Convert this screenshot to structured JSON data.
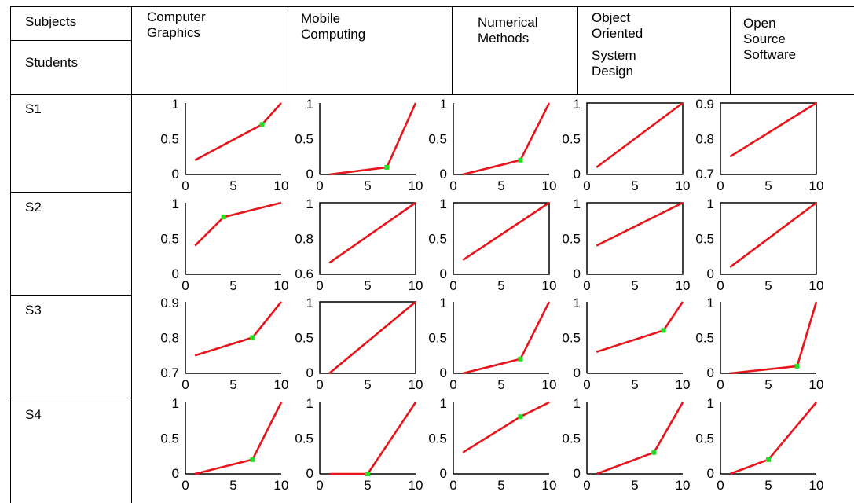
{
  "header": {
    "corner_top": "Subjects",
    "corner_bottom": "Students",
    "subjects": [
      {
        "lines": [
          "Computer",
          "Graphics"
        ]
      },
      {
        "lines": [
          "Mobile",
          "Computing"
        ]
      },
      {
        "lines": [
          "Numerical",
          "Methods"
        ]
      },
      {
        "lines": [
          "Object",
          "Oriented",
          "System",
          "Design"
        ]
      },
      {
        "lines": [
          "Open",
          "Source",
          "Software"
        ]
      }
    ]
  },
  "students": [
    "S1",
    "S2",
    "S3",
    "S4"
  ],
  "colors": {
    "line": "#e8141a",
    "point": "#22dd22",
    "axis": "#000000"
  },
  "chart_data": [
    {
      "type": "line",
      "student": "S1",
      "subject": "Computer Graphics",
      "x": [
        1,
        8,
        10
      ],
      "y": [
        0.2,
        0.7,
        1.0
      ],
      "marker_x": 8,
      "marker_y": 0.7,
      "ylim": [
        0,
        1
      ],
      "yticks": [
        "1",
        "0.5",
        "0"
      ],
      "xlim": [
        0,
        10
      ],
      "xticks": [
        "0",
        "5",
        "10"
      ],
      "box": false
    },
    {
      "type": "line",
      "student": "S1",
      "subject": "Mobile Computing",
      "x": [
        1,
        7,
        10
      ],
      "y": [
        0.0,
        0.1,
        1.0
      ],
      "marker_x": 7,
      "marker_y": 0.1,
      "ylim": [
        0,
        1
      ],
      "yticks": [
        "1",
        "0.5",
        "0"
      ],
      "xlim": [
        0,
        10
      ],
      "xticks": [
        "0",
        "5",
        "10"
      ],
      "box": false
    },
    {
      "type": "line",
      "student": "S1",
      "subject": "Numerical Methods",
      "x": [
        1,
        7,
        10
      ],
      "y": [
        0.0,
        0.2,
        1.0
      ],
      "marker_x": 7,
      "marker_y": 0.2,
      "ylim": [
        0,
        1
      ],
      "yticks": [
        "1",
        "0.5",
        "0"
      ],
      "xlim": [
        0,
        10
      ],
      "xticks": [
        "0",
        "5",
        "10"
      ],
      "box": false
    },
    {
      "type": "line",
      "student": "S1",
      "subject": "Object Oriented System Design",
      "x": [
        1,
        10
      ],
      "y": [
        0.1,
        1.0
      ],
      "ylim": [
        0,
        1
      ],
      "yticks": [
        "1",
        "0.5",
        "0"
      ],
      "xlim": [
        0,
        10
      ],
      "xticks": [
        "0",
        "5",
        "10"
      ],
      "box": true
    },
    {
      "type": "line",
      "student": "S1",
      "subject": "Open Source Software",
      "x": [
        1,
        10
      ],
      "y": [
        0.7,
        1.0
      ],
      "ylim": [
        0.6,
        1.0
      ],
      "yticks": [
        "0.9",
        "0.8",
        "0.7"
      ],
      "xlim": [
        0,
        10
      ],
      "xticks": [
        "0",
        "5",
        "10"
      ],
      "box": true
    },
    {
      "type": "line",
      "student": "S2",
      "subject": "Computer Graphics",
      "x": [
        1,
        4,
        10
      ],
      "y": [
        0.4,
        0.8,
        1.0
      ],
      "marker_x": 4,
      "marker_y": 0.8,
      "ylim": [
        0,
        1
      ],
      "yticks": [
        "1",
        "0.5",
        "0"
      ],
      "xlim": [
        0,
        10
      ],
      "xticks": [
        "0",
        "5",
        "10"
      ],
      "box": false
    },
    {
      "type": "line",
      "student": "S2",
      "subject": "Mobile Computing",
      "x": [
        1,
        10
      ],
      "y": [
        0.58,
        1.0
      ],
      "ylim": [
        0.5,
        1.0
      ],
      "yticks": [
        "1",
        "0.8",
        "0.6"
      ],
      "xlim": [
        0,
        10
      ],
      "xticks": [
        "0",
        "5",
        "10"
      ],
      "box": true
    },
    {
      "type": "line",
      "student": "S2",
      "subject": "Numerical Methods",
      "x": [
        1,
        10
      ],
      "y": [
        0.2,
        1.0
      ],
      "ylim": [
        0,
        1
      ],
      "yticks": [
        "1",
        "0.5",
        "0"
      ],
      "xlim": [
        0,
        10
      ],
      "xticks": [
        "0",
        "5",
        "10"
      ],
      "box": true
    },
    {
      "type": "line",
      "student": "S2",
      "subject": "Object Oriented System Design",
      "x": [
        1,
        10
      ],
      "y": [
        0.4,
        1.0
      ],
      "ylim": [
        0,
        1
      ],
      "yticks": [
        "1",
        "0.5",
        "0"
      ],
      "xlim": [
        0,
        10
      ],
      "xticks": [
        "0",
        "5",
        "10"
      ],
      "box": true
    },
    {
      "type": "line",
      "student": "S2",
      "subject": "Open Source Software",
      "x": [
        1,
        10
      ],
      "y": [
        0.1,
        1.0
      ],
      "ylim": [
        0,
        1
      ],
      "yticks": [
        "1",
        "0.5",
        "0"
      ],
      "xlim": [
        0,
        10
      ],
      "xticks": [
        "0",
        "5",
        "10"
      ],
      "box": true
    },
    {
      "type": "line",
      "student": "S3",
      "subject": "Computer Graphics",
      "x": [
        1,
        7,
        10
      ],
      "y": [
        0.7,
        0.8,
        1.0
      ],
      "marker_x": 7,
      "marker_y": 0.8,
      "ylim": [
        0.6,
        1.0
      ],
      "yticks": [
        "0.9",
        "0.8",
        "0.7"
      ],
      "xlim": [
        0,
        10
      ],
      "xticks": [
        "0",
        "5",
        "10"
      ],
      "box": false
    },
    {
      "type": "line",
      "student": "S3",
      "subject": "Mobile Computing",
      "x": [
        1,
        10
      ],
      "y": [
        0.0,
        1.0
      ],
      "ylim": [
        0,
        1
      ],
      "yticks": [
        "1",
        "0.5",
        "0"
      ],
      "xlim": [
        0,
        10
      ],
      "xticks": [
        "0",
        "5",
        "10"
      ],
      "box": true
    },
    {
      "type": "line",
      "student": "S3",
      "subject": "Numerical Methods",
      "x": [
        1,
        7,
        10
      ],
      "y": [
        0.0,
        0.2,
        1.0
      ],
      "marker_x": 7,
      "marker_y": 0.2,
      "ylim": [
        0,
        1
      ],
      "yticks": [
        "1",
        "0.5",
        "0"
      ],
      "xlim": [
        0,
        10
      ],
      "xticks": [
        "0",
        "5",
        "10"
      ],
      "box": false
    },
    {
      "type": "line",
      "student": "S3",
      "subject": "Object Oriented System Design",
      "x": [
        1,
        8,
        10
      ],
      "y": [
        0.3,
        0.6,
        1.0
      ],
      "marker_x": 8,
      "marker_y": 0.6,
      "ylim": [
        0,
        1
      ],
      "yticks": [
        "1",
        "0.5",
        "0"
      ],
      "xlim": [
        0,
        10
      ],
      "xticks": [
        "0",
        "5",
        "10"
      ],
      "box": false
    },
    {
      "type": "line",
      "student": "S3",
      "subject": "Open Source Software",
      "x": [
        1,
        8,
        10
      ],
      "y": [
        0.0,
        0.1,
        1.0
      ],
      "marker_x": 8,
      "marker_y": 0.1,
      "ylim": [
        0,
        1
      ],
      "yticks": [
        "1",
        "0.5",
        "0"
      ],
      "xlim": [
        0,
        10
      ],
      "xticks": [
        "0",
        "5",
        "10"
      ],
      "box": false
    },
    {
      "type": "line",
      "student": "S4",
      "subject": "Computer Graphics",
      "x": [
        1,
        7,
        10
      ],
      "y": [
        0.0,
        0.2,
        1.0
      ],
      "marker_x": 7,
      "marker_y": 0.2,
      "ylim": [
        0,
        1
      ],
      "yticks": [
        "1",
        "0.5",
        "0"
      ],
      "xlim": [
        0,
        10
      ],
      "xticks": [
        "0",
        "5",
        "10"
      ],
      "box": false
    },
    {
      "type": "line",
      "student": "S4",
      "subject": "Mobile Computing",
      "x": [
        1,
        5,
        10
      ],
      "y": [
        0.0,
        0.0,
        1.0
      ],
      "marker_x": 5,
      "marker_y": 0.0,
      "ylim": [
        0,
        1
      ],
      "yticks": [
        "1",
        "0.5",
        "0"
      ],
      "xlim": [
        0,
        10
      ],
      "xticks": [
        "0",
        "5",
        "10"
      ],
      "box": false
    },
    {
      "type": "line",
      "student": "S4",
      "subject": "Numerical Methods",
      "x": [
        1,
        7,
        10
      ],
      "y": [
        0.3,
        0.8,
        1.0
      ],
      "marker_x": 7,
      "marker_y": 0.8,
      "ylim": [
        0,
        1
      ],
      "yticks": [
        "1",
        "0.5",
        "0"
      ],
      "xlim": [
        0,
        10
      ],
      "xticks": [
        "0",
        "5",
        "10"
      ],
      "box": false
    },
    {
      "type": "line",
      "student": "S4",
      "subject": "Object Oriented System Design",
      "x": [
        1,
        7,
        10
      ],
      "y": [
        0.0,
        0.3,
        1.0
      ],
      "marker_x": 7,
      "marker_y": 0.3,
      "ylim": [
        0,
        1
      ],
      "yticks": [
        "1",
        "0.5",
        "0"
      ],
      "xlim": [
        0,
        10
      ],
      "xticks": [
        "0",
        "5",
        "10"
      ],
      "box": false
    },
    {
      "type": "line",
      "student": "S4",
      "subject": "Open Source Software",
      "x": [
        1,
        5,
        10
      ],
      "y": [
        0.0,
        0.2,
        1.0
      ],
      "marker_x": 5,
      "marker_y": 0.2,
      "ylim": [
        0,
        1
      ],
      "yticks": [
        "1",
        "0.5",
        "0"
      ],
      "xlim": [
        0,
        10
      ],
      "xticks": [
        "0",
        "5",
        "10"
      ],
      "box": false
    }
  ]
}
